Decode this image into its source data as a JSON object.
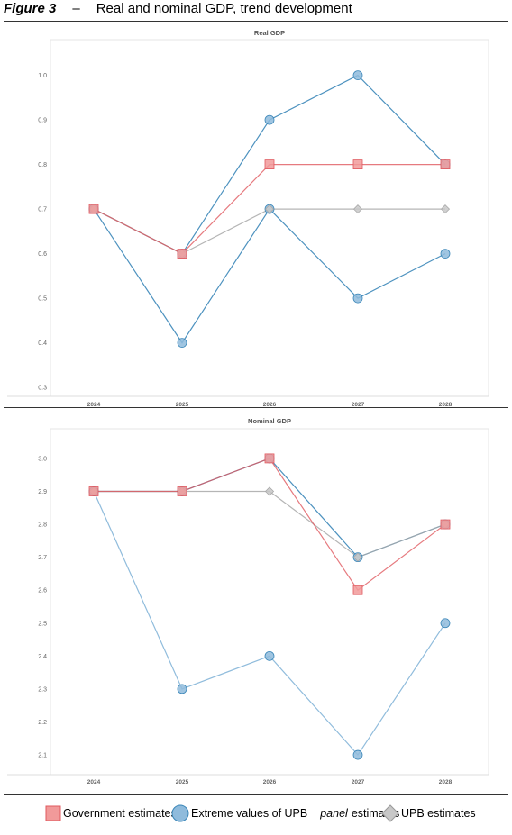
{
  "figure": {
    "label": "Figure 3",
    "dash": "–",
    "title": "Real and nominal GDP, trend development"
  },
  "legend": {
    "government": "Government estimates",
    "extreme_prefix": "Extreme values of UPB",
    "extreme_em": "panel",
    "extreme_suffix": "estimates",
    "upb": "UPB estimates"
  },
  "colors": {
    "government": "#e0595f",
    "government_fill": "#f19a9a",
    "extreme_line": "#3a86b8",
    "extreme_line_light": "#84b5d8",
    "extreme_fill": "#8fbbdc",
    "upb": "#a8a8a8",
    "upb_fill": "#c8c8c8",
    "overlap": "#8e5463"
  },
  "chart_data": [
    {
      "type": "line",
      "title": "Real GDP",
      "x": [
        "2024",
        "2025",
        "2026",
        "2027",
        "2028"
      ],
      "yticks": [
        "0.3",
        "0.4",
        "0.5",
        "0.6",
        "0.7",
        "0.8",
        "0.9",
        "1.0"
      ],
      "ylim": [
        0.28,
        1.08
      ],
      "series": [
        {
          "key": "extreme_high",
          "values": [
            0.7,
            0.6,
            0.9,
            1.0,
            0.8
          ]
        },
        {
          "key": "extreme_low",
          "values": [
            0.7,
            0.4,
            0.7,
            0.5,
            0.6
          ]
        },
        {
          "key": "upb",
          "values": [
            0.7,
            0.6,
            0.7,
            0.7,
            0.7
          ]
        },
        {
          "key": "government",
          "values": [
            0.7,
            0.6,
            0.8,
            0.8,
            0.8
          ]
        }
      ]
    },
    {
      "type": "line",
      "title": "Nominal GDP",
      "x": [
        "2024",
        "2025",
        "2026",
        "2027",
        "2028"
      ],
      "yticks": [
        "2.1",
        "2.2",
        "2.3",
        "2.4",
        "2.5",
        "2.6",
        "2.7",
        "2.8",
        "2.9",
        "3.0"
      ],
      "ylim": [
        2.04,
        3.09
      ],
      "series": [
        {
          "key": "extreme_low",
          "values": [
            2.9,
            2.3,
            2.4,
            2.1,
            2.5
          ]
        },
        {
          "key": "extreme_high",
          "values": [
            2.9,
            2.9,
            3.0,
            2.7,
            2.8
          ]
        },
        {
          "key": "upb",
          "values": [
            2.9,
            2.9,
            2.9,
            2.7,
            2.8
          ]
        },
        {
          "key": "government",
          "values": [
            2.9,
            2.9,
            3.0,
            2.6,
            2.8
          ]
        }
      ]
    }
  ]
}
